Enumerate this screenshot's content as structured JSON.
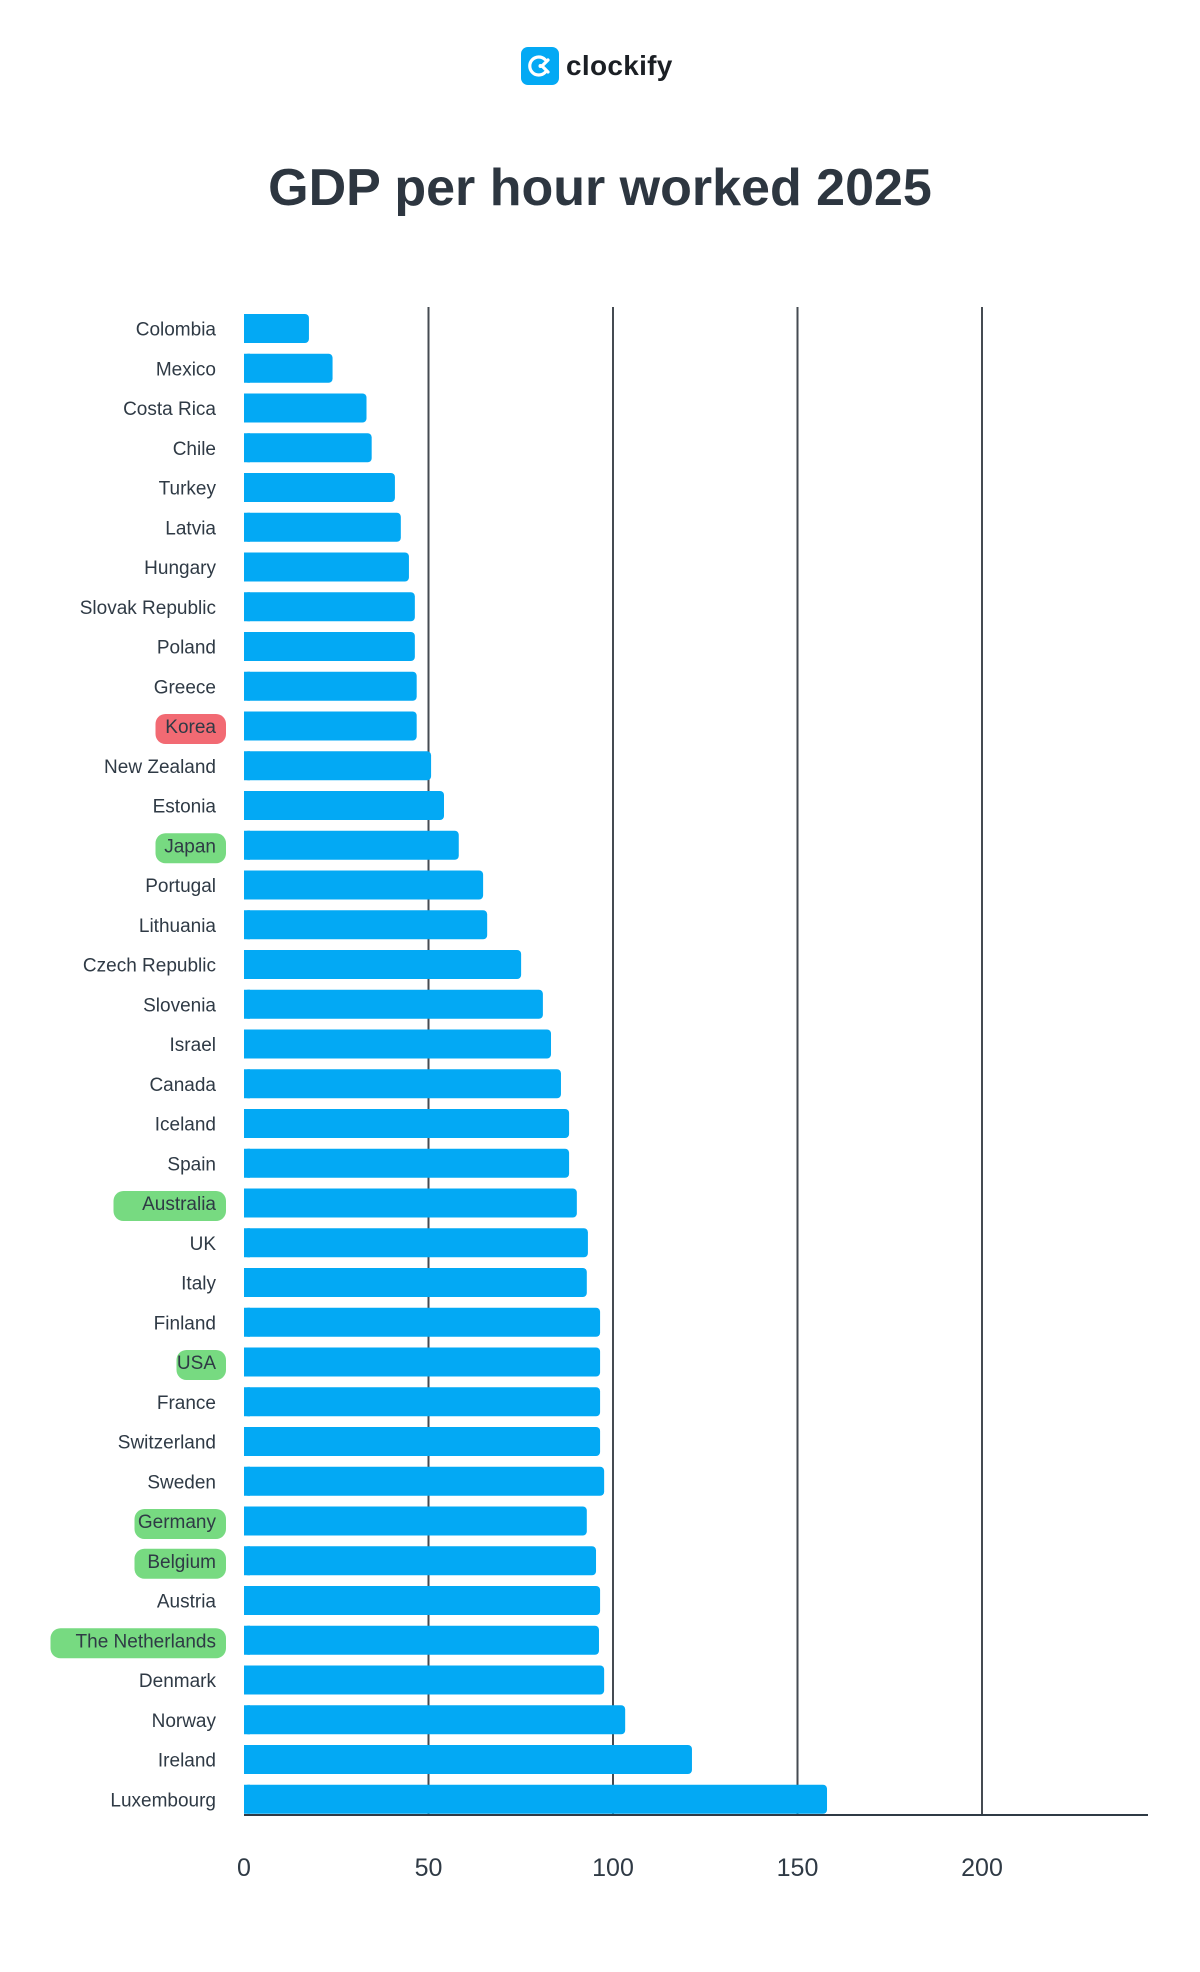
{
  "brand": {
    "name": "clockify",
    "icon": "clockify-logo-icon",
    "color": "#03A9F4"
  },
  "chart_data": {
    "type": "bar",
    "orientation": "horizontal",
    "title": "GDP per hour worked 2025",
    "xlabel": "",
    "ylabel": "",
    "xlim": [
      0,
      240
    ],
    "xticks": [
      0,
      50,
      100,
      150,
      200
    ],
    "grid": "vertical",
    "legend": "none",
    "bar_color": "#03A9F4",
    "categories": [
      "Colombia",
      "Mexico",
      "Costa Rica",
      "Chile",
      "Turkey",
      "Latvia",
      "Hungary",
      "Slovak Republic",
      "Poland",
      "Greece",
      "Korea",
      "New Zealand",
      "Estonia",
      "Japan",
      "Portugal",
      "Lithuania",
      "Czech Republic",
      "Slovenia",
      "Israel",
      "Canada",
      "Iceland",
      "Spain",
      "Australia",
      "UK",
      "Italy",
      "Finland",
      "USA",
      "France",
      "Switzerland",
      "Sweden",
      "Germany",
      "Belgium",
      "Austria",
      "The Netherlands",
      "Denmark",
      "Norway",
      "Ireland",
      "Luxembourg"
    ],
    "values": [
      17.6,
      24.0,
      33.2,
      34.6,
      40.9,
      42.5,
      44.7,
      46.3,
      46.3,
      46.8,
      46.8,
      50.7,
      54.2,
      58.2,
      64.8,
      65.9,
      75.1,
      81.0,
      83.2,
      85.9,
      88.1,
      88.1,
      90.2,
      93.2,
      92.9,
      96.5,
      96.5,
      96.5,
      96.5,
      97.6,
      92.9,
      95.4,
      96.5,
      96.2,
      97.6,
      103.3,
      121.4,
      158.0
    ],
    "highlights": [
      {
        "category": "Korea",
        "color": "#f0505a"
      },
      {
        "category": "Japan",
        "color": "#5fd36b"
      },
      {
        "category": "Australia",
        "color": "#5fd36b"
      },
      {
        "category": "USA",
        "color": "#5fd36b"
      },
      {
        "category": "Germany",
        "color": "#5fd36b"
      },
      {
        "category": "Belgium",
        "color": "#5fd36b"
      },
      {
        "category": "The Netherlands",
        "color": "#5fd36b"
      }
    ]
  }
}
